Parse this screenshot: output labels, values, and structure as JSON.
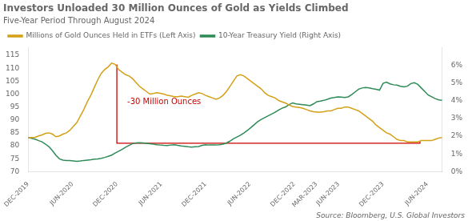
{
  "chart_data": {
    "type": "line",
    "title": "Investors Unloaded 30 Million Ounces of Gold as Yields Climbed",
    "subtitle": "Five-Year Period Through August 2024",
    "source": "Source: Bloomberg, U.S. Global Investors",
    "x": [
      0,
      0.4706,
      0.9412,
      1.4118,
      1.8824,
      2.3529,
      2.8235,
      3.2941,
      3.7647,
      4.2353,
      4.7059,
      5.1765,
      5.6471,
      6.1176,
      6.5882,
      7.0588,
      7.5294,
      8,
      8.4706,
      8.9412,
      9.4118,
      9.8824,
      10.3529,
      10.8235,
      11.2941,
      11.7647,
      12.2353,
      12.7059,
      13.1765,
      13.6471,
      14.1176,
      14.5882,
      15.0588,
      15.5294,
      16,
      16.4706,
      16.9412,
      17.4118,
      17.8824,
      18.3529,
      18.8235,
      19.2941,
      19.7647,
      20.2353,
      20.7059,
      21.1765,
      21.6471,
      22.1176,
      22.5882,
      23.0588,
      23.5294,
      24,
      24.4706,
      24.9412,
      25.4118,
      25.8824,
      26.3529,
      26.8235,
      27.2941,
      27.7647,
      28.2353,
      28.7059,
      29.1765,
      29.6471,
      30.1176,
      30.5882,
      31.0588,
      31.5294,
      32,
      32.4706,
      32.9412,
      33.4118,
      33.8824,
      34.3529,
      34.8235,
      35.2941,
      35.7647,
      36.2353,
      36.7059,
      37.1765,
      37.6471,
      38.1176,
      38.5882,
      39.0588,
      39.5294,
      40,
      40.4706,
      40.9412,
      41.4118,
      41.8824,
      42.3529,
      42.8235,
      43.2941,
      43.7647,
      44.2353,
      44.7059,
      45.1765,
      45.6471,
      46.1176,
      46.5882,
      47.0588,
      47.5294,
      48,
      48.4706,
      48.9412,
      49.4118,
      49.8824,
      50.3529,
      50.8235,
      51.2941,
      51.7647,
      52.2353,
      52.7059,
      53.1765,
      53.6471,
      54.1176,
      54.5882,
      55.0588,
      55.5294,
      56
    ],
    "xlim": [
      0,
      56
    ],
    "xticks": [
      {
        "value": 0,
        "label": "DEC-2019"
      },
      {
        "value": 6,
        "label": "JUN-2020"
      },
      {
        "value": 12,
        "label": "DEC-2020"
      },
      {
        "value": 18,
        "label": "JUN-2021"
      },
      {
        "value": 24,
        "label": "DEC-2021"
      },
      {
        "value": 30,
        "label": "JUN-2022"
      },
      {
        "value": 36,
        "label": "DEC-2022"
      },
      {
        "value": 39,
        "label": "MAR-2023"
      },
      {
        "value": 42,
        "label": "JUN-2023"
      },
      {
        "value": 48,
        "label": "DEC-2023"
      },
      {
        "value": 54,
        "label": "JUN-2024"
      }
    ],
    "ylim": [
      70,
      118
    ],
    "yticks": [
      70,
      75,
      80,
      85,
      90,
      95,
      100,
      105,
      110,
      115
    ],
    "y2lim": [
      0,
      7
    ],
    "y2ticks": [
      {
        "value": 0,
        "label": "0%"
      },
      {
        "value": 1,
        "label": "1%"
      },
      {
        "value": 2,
        "label": "2%"
      },
      {
        "value": 3,
        "label": "3%"
      },
      {
        "value": 4,
        "label": "4%"
      },
      {
        "value": 5,
        "label": "5%"
      },
      {
        "value": 6,
        "label": "6%"
      }
    ],
    "grid": false,
    "legend": "top",
    "series": [
      {
        "name": "Millions of Gold Ounces Held in ETFs (Left Axis)",
        "color": "#D4A017",
        "axis": "y",
        "values": [
          83.0,
          83.2,
          83.3,
          83.8,
          84.2,
          84.8,
          85.0,
          84.5,
          83.5,
          83.8,
          84.5,
          85.0,
          86.0,
          87.5,
          89.0,
          91.5,
          94.0,
          97.0,
          99.5,
          102.5,
          105.5,
          108.0,
          109.5,
          110.5,
          112.0,
          111.5,
          109.5,
          108.5,
          107.5,
          107.0,
          106.0,
          104.5,
          103.0,
          102.0,
          101.0,
          100.0,
          100.2,
          100.5,
          100.3,
          100.0,
          99.5,
          99.3,
          99.0,
          99.0,
          99.2,
          99.0,
          98.8,
          99.5,
          100.0,
          100.5,
          100.2,
          99.5,
          99.0,
          98.5,
          98.0,
          98.5,
          99.5,
          101.0,
          103.0,
          105.0,
          107.0,
          107.5,
          107.0,
          106.0,
          105.0,
          104.0,
          103.0,
          102.0,
          100.5,
          99.5,
          99.0,
          98.5,
          97.5,
          97.0,
          96.5,
          95.8,
          95.2,
          95.0,
          94.8,
          94.5,
          94.0,
          93.5,
          93.2,
          93.0,
          93.0,
          93.2,
          93.5,
          93.5,
          94.0,
          94.5,
          94.5,
          95.0,
          95.0,
          94.5,
          94.0,
          93.5,
          92.5,
          91.5,
          90.5,
          89.5,
          88.0,
          87.0,
          86.0,
          85.0,
          84.5,
          83.5,
          82.5,
          82.0,
          82.0,
          81.5,
          81.5,
          81.5,
          81.5,
          82.0,
          82.0,
          82.0,
          82.0,
          82.5,
          83.0,
          83.2
        ]
      },
      {
        "name": "10-Year Treasury Yield (Right Axis)",
        "color": "#2E8B57",
        "axis": "y2",
        "values": [
          1.92,
          1.88,
          1.83,
          1.75,
          1.68,
          1.55,
          1.4,
          1.18,
          0.92,
          0.72,
          0.65,
          0.62,
          0.62,
          0.6,
          0.58,
          0.6,
          0.63,
          0.65,
          0.67,
          0.7,
          0.72,
          0.75,
          0.8,
          0.86,
          0.93,
          1.05,
          1.15,
          1.25,
          1.38,
          1.48,
          1.58,
          1.62,
          1.63,
          1.62,
          1.6,
          1.57,
          1.55,
          1.52,
          1.5,
          1.48,
          1.47,
          1.5,
          1.52,
          1.48,
          1.45,
          1.43,
          1.4,
          1.38,
          1.4,
          1.42,
          1.48,
          1.52,
          1.5,
          1.5,
          1.5,
          1.52,
          1.55,
          1.62,
          1.72,
          1.85,
          1.95,
          2.05,
          2.18,
          2.32,
          2.48,
          2.65,
          2.82,
          2.95,
          3.05,
          3.15,
          3.25,
          3.35,
          3.48,
          3.58,
          3.65,
          3.78,
          3.88,
          3.82,
          3.8,
          3.78,
          3.75,
          3.72,
          3.82,
          3.95,
          3.98,
          4.02,
          4.08,
          4.15,
          4.18,
          4.22,
          4.2,
          4.18,
          4.22,
          4.35,
          4.5,
          4.65,
          4.72,
          4.75,
          4.72,
          4.68,
          4.65,
          4.6,
          4.98,
          5.05,
          4.95,
          4.9,
          4.88,
          4.82,
          4.78,
          4.82,
          4.97,
          5.02,
          4.92,
          4.72,
          4.52,
          4.32,
          4.22,
          4.12,
          4.05,
          4.02
        ]
      }
    ],
    "annotations": [
      {
        "type": "bracket",
        "x": [
          12,
          12,
          53,
          53
        ],
        "y": [
          111.5,
          81.0,
          81.0,
          81.8
        ],
        "color": "#CC0000"
      },
      {
        "type": "text",
        "text": "-30 Million Ounces",
        "x": 13.4,
        "y": 95.5,
        "color": "#CC0000"
      }
    ]
  }
}
